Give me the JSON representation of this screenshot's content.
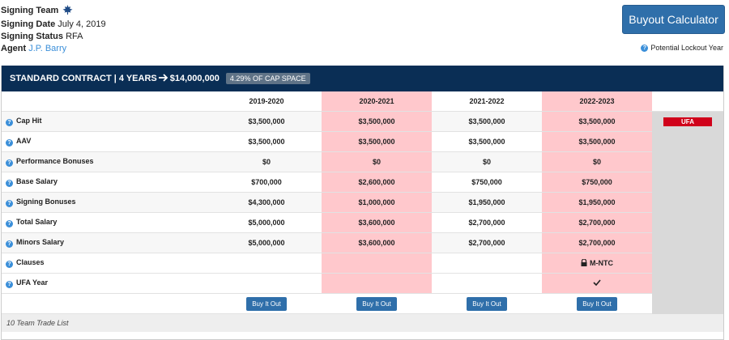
{
  "info": {
    "signing_team_label": "Signing Team",
    "signing_date_label": "Signing Date",
    "signing_date": "July 4, 2019",
    "signing_status_label": "Signing Status",
    "signing_status": "RFA",
    "agent_label": "Agent",
    "agent": "J.P. Barry"
  },
  "buyout_button": "Buyout Calculator",
  "lockout_label": "Potential Lockout Year",
  "contract": {
    "title": "STANDARD CONTRACT | 4 YEARS",
    "total": "$14,000,000",
    "cap_badge": "4.29% OF CAP SPACE",
    "seasons": [
      "2019-2020",
      "2020-2021",
      "2021-2022",
      "2022-2023"
    ],
    "rows": [
      {
        "label": "Cap Hit",
        "values": [
          "$3,500,000",
          "$3,500,000",
          "$3,500,000",
          "$3,500,000"
        ]
      },
      {
        "label": "AAV",
        "values": [
          "$3,500,000",
          "$3,500,000",
          "$3,500,000",
          "$3,500,000"
        ]
      },
      {
        "label": "Performance Bonuses",
        "values": [
          "$0",
          "$0",
          "$0",
          "$0"
        ]
      },
      {
        "label": "Base Salary",
        "values": [
          "$700,000",
          "$2,600,000",
          "$750,000",
          "$750,000"
        ]
      },
      {
        "label": "Signing Bonuses",
        "values": [
          "$4,300,000",
          "$1,000,000",
          "$1,950,000",
          "$1,950,000"
        ]
      },
      {
        "label": "Total Salary",
        "values": [
          "$5,000,000",
          "$3,600,000",
          "$2,700,000",
          "$2,700,000"
        ]
      },
      {
        "label": "Minors Salary",
        "values": [
          "$5,000,000",
          "$3,600,000",
          "$2,700,000",
          "$2,700,000"
        ]
      },
      {
        "label": "Clauses",
        "values": [
          "",
          "",
          "",
          "M-NTC"
        ]
      },
      {
        "label": "UFA Year",
        "values": [
          "",
          "",
          "",
          ""
        ]
      }
    ],
    "ufa_badge": "UFA",
    "buy_label": "Buy It Out",
    "footer": "10 Team Trade List"
  },
  "colors": {
    "header_bg": "#0a2e55",
    "pink_col": "#ffc8cc",
    "button_blue": "#2f6faa",
    "ufa_red": "#d0021b",
    "help_icon_blue": "#3b8fd9"
  },
  "icons": [
    "maple-leaf-logo-icon",
    "help-icon",
    "arrow-right-icon",
    "lock-icon",
    "checkmark-icon"
  ]
}
